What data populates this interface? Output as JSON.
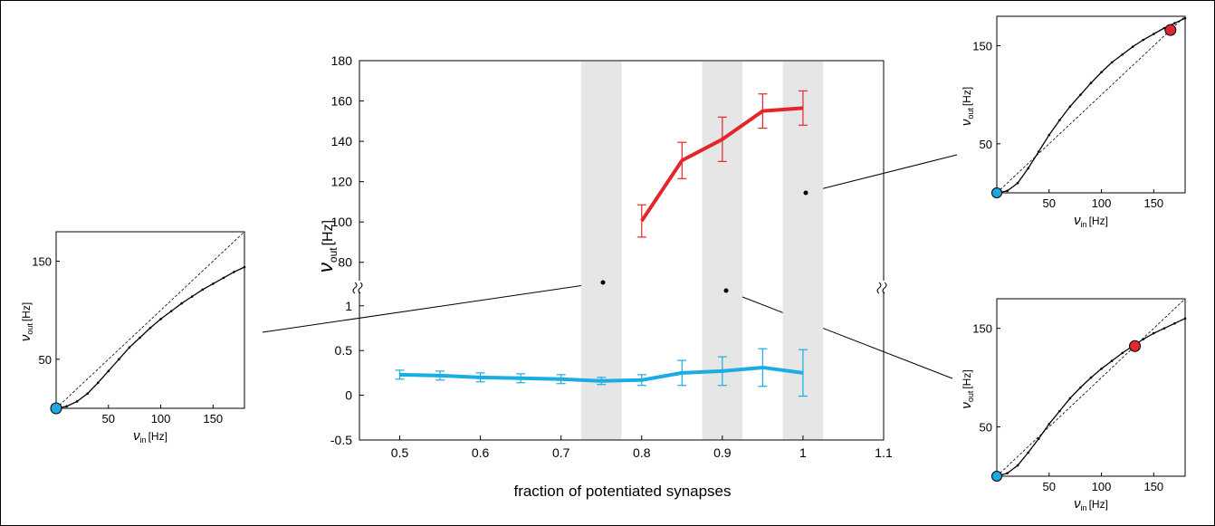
{
  "colors": {
    "red_series": "#e3262b",
    "blue_series": "#19ade4",
    "shade": "#e6e6e6",
    "red_marker": "#d82a2f",
    "blue_marker": "#1ea7e1"
  },
  "chart_data": [
    {
      "id": "main",
      "type": "line",
      "xlabel": "fraction of potentiated synapses",
      "ylabel_main": "ν",
      "ylabel_sub": "out",
      "ylabel_unit": "[Hz]",
      "xlim": [
        0.45,
        1.1
      ],
      "x_ticks": [
        "0.5",
        "0.6",
        "0.7",
        "0.8",
        "0.9",
        "1",
        "1.1"
      ],
      "x_tick_values": [
        0.5,
        0.6,
        0.7,
        0.8,
        0.9,
        1.0,
        1.1
      ],
      "upper_ylim": [
        70,
        180
      ],
      "upper_y_ticks": [
        80,
        100,
        120,
        140,
        160,
        180
      ],
      "lower_ylim": [
        -0.5,
        1.2
      ],
      "lower_y_ticks": [
        -0.5,
        0,
        0.5,
        1
      ],
      "lower_y_tick_labels": [
        "-0.5",
        "0",
        "0.5",
        "1"
      ],
      "axis_break": true,
      "shaded_x": [
        0.75,
        0.9,
        1.0
      ],
      "series": [
        {
          "axis": "upper",
          "color": "#e3262b",
          "x": [
            0.8,
            0.85,
            0.9,
            0.95,
            1.0
          ],
          "y": [
            100.5,
            130.5,
            141,
            155,
            156.5
          ],
          "err": [
            8,
            9,
            11,
            8.5,
            8.5
          ]
        },
        {
          "axis": "lower",
          "color": "#19ade4",
          "x": [
            0.5,
            0.55,
            0.6,
            0.65,
            0.7,
            0.75,
            0.8,
            0.85,
            0.9,
            0.95,
            1.0
          ],
          "y": [
            0.23,
            0.22,
            0.2,
            0.19,
            0.18,
            0.16,
            0.17,
            0.25,
            0.27,
            0.31,
            0.25
          ],
          "err": [
            0.05,
            0.05,
            0.05,
            0.05,
            0.05,
            0.04,
            0.06,
            0.14,
            0.16,
            0.21,
            0.26
          ]
        }
      ],
      "reference_points": [
        {
          "x": 0.75,
          "axis": "break",
          "y": 73
        },
        {
          "x": 0.9,
          "axis": "break",
          "y": 71
        },
        {
          "x": 1.0,
          "axis": "upper",
          "y": 115
        }
      ]
    },
    {
      "id": "inset_left",
      "type": "line",
      "xlabel_main": "ν",
      "xlabel_sub": "in",
      "xlabel_unit": "[Hz]",
      "ylabel_main": "ν",
      "ylabel_sub": "out",
      "ylabel_unit": "[Hz]",
      "xlim": [
        0,
        180
      ],
      "ylim": [
        0,
        180
      ],
      "x_ticks": [
        50,
        100,
        150
      ],
      "y_ticks": [
        50,
        150
      ],
      "diagonal": true,
      "curve_x": [
        0,
        10,
        20,
        30,
        40,
        50,
        60,
        70,
        80,
        90,
        100,
        110,
        120,
        130,
        140,
        150,
        160,
        170,
        180
      ],
      "curve_y": [
        0,
        2,
        7,
        15,
        26,
        38,
        50,
        62,
        72,
        82,
        91,
        99,
        107,
        114,
        121,
        127,
        133,
        139,
        144
      ],
      "marker": {
        "x": 0,
        "y": 0,
        "color": "#1ea7e1"
      }
    },
    {
      "id": "inset_top_right",
      "type": "line",
      "xlabel_main": "ν",
      "xlabel_sub": "in",
      "xlabel_unit": "[Hz]",
      "ylabel_main": "ν",
      "ylabel_sub": "out",
      "ylabel_unit": "[Hz]",
      "xlim": [
        0,
        180
      ],
      "ylim": [
        0,
        180
      ],
      "x_ticks": [
        50,
        100,
        150
      ],
      "y_ticks": [
        50,
        150
      ],
      "diagonal": true,
      "curve_x": [
        0,
        10,
        20,
        30,
        40,
        50,
        60,
        70,
        80,
        90,
        100,
        110,
        120,
        130,
        140,
        150,
        160,
        170,
        180
      ],
      "curve_y": [
        0,
        2,
        10,
        25,
        42,
        59,
        74,
        88,
        100,
        112,
        123,
        133,
        141,
        149,
        156,
        162,
        168,
        173,
        178
      ],
      "marker": {
        "x": 166,
        "y": 166,
        "color": "#d82a2f"
      },
      "origin_marker": {
        "x": 0,
        "y": 0,
        "color": "#1ea7e1"
      }
    },
    {
      "id": "inset_bottom_right",
      "type": "line",
      "xlabel_main": "ν",
      "xlabel_sub": "in",
      "xlabel_unit": "[Hz]",
      "ylabel_main": "ν",
      "ylabel_sub": "out",
      "ylabel_unit": "[Hz]",
      "xlim": [
        0,
        180
      ],
      "ylim": [
        0,
        180
      ],
      "x_ticks": [
        50,
        100,
        150
      ],
      "y_ticks": [
        50,
        150
      ],
      "diagonal": true,
      "curve_x": [
        0,
        10,
        20,
        30,
        40,
        50,
        60,
        70,
        80,
        90,
        100,
        110,
        120,
        130,
        140,
        150,
        160,
        170,
        180
      ],
      "curve_y": [
        0,
        3,
        11,
        24,
        38,
        53,
        66,
        79,
        90,
        100,
        109,
        117,
        125,
        132,
        139,
        145,
        150,
        155,
        160
      ],
      "marker": {
        "x": 132,
        "y": 132,
        "color": "#d82a2f"
      },
      "origin_marker": {
        "x": 0,
        "y": 0,
        "color": "#1ea7e1"
      }
    }
  ]
}
